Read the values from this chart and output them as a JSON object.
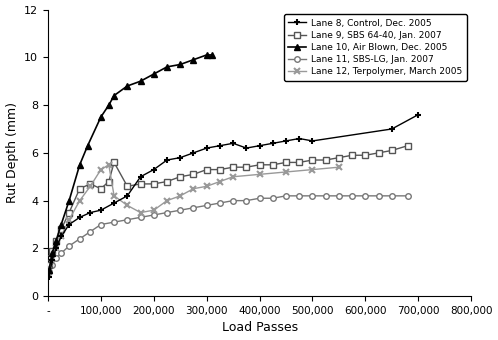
{
  "xlabel": "Load Passes",
  "ylabel": "Rut Depth (mm)",
  "xlim": [
    0,
    800000
  ],
  "ylim": [
    0,
    12
  ],
  "yticks": [
    0,
    2,
    4,
    6,
    8,
    10,
    12
  ],
  "xticks": [
    0,
    100000,
    200000,
    300000,
    400000,
    500000,
    600000,
    700000,
    800000
  ],
  "xtick_labels": [
    "-",
    "100,000",
    "200,000",
    "300,000",
    "400,000",
    "500,000",
    "600,000",
    "700,000",
    "800,000"
  ],
  "lane8": {
    "label": "Lane 8, Control, Dec. 2005",
    "color": "#000000",
    "marker": "+",
    "markersize": 5,
    "markeredgewidth": 1.5,
    "linewidth": 1.0,
    "linestyle": "-",
    "x": [
      2000,
      8000,
      15000,
      25000,
      40000,
      60000,
      80000,
      100000,
      125000,
      150000,
      175000,
      200000,
      225000,
      250000,
      275000,
      300000,
      325000,
      350000,
      375000,
      400000,
      425000,
      450000,
      475000,
      500000,
      650000,
      700000
    ],
    "y": [
      0.8,
      1.5,
      2.0,
      2.5,
      3.0,
      3.3,
      3.5,
      3.6,
      3.9,
      4.2,
      5.0,
      5.3,
      5.7,
      5.8,
      6.0,
      6.2,
      6.3,
      6.4,
      6.2,
      6.3,
      6.4,
      6.5,
      6.6,
      6.5,
      7.0,
      7.6
    ]
  },
  "lane9": {
    "label": "Lane 9, SBS 64-40, Jan. 2007",
    "color": "#555555",
    "marker": "s",
    "markersize": 4,
    "linewidth": 1.0,
    "linestyle": "-",
    "markerfacecolor": "white",
    "x": [
      2000,
      8000,
      15000,
      25000,
      40000,
      60000,
      80000,
      100000,
      115000,
      125000,
      150000,
      175000,
      200000,
      225000,
      250000,
      275000,
      300000,
      325000,
      350000,
      375000,
      400000,
      425000,
      450000,
      475000,
      500000,
      525000,
      550000,
      575000,
      600000,
      625000,
      650000,
      680000
    ],
    "y": [
      1.3,
      1.9,
      2.3,
      2.8,
      3.5,
      4.5,
      4.7,
      4.5,
      4.8,
      5.6,
      4.6,
      4.7,
      4.7,
      4.8,
      5.0,
      5.1,
      5.3,
      5.3,
      5.4,
      5.4,
      5.5,
      5.5,
      5.6,
      5.6,
      5.7,
      5.7,
      5.8,
      5.9,
      5.9,
      6.0,
      6.1,
      6.3
    ]
  },
  "lane10": {
    "label": "Lane 10, Air Blown, Dec. 2005",
    "color": "#000000",
    "marker": "^",
    "markersize": 5,
    "linewidth": 1.2,
    "linestyle": "-",
    "x": [
      2000,
      8000,
      15000,
      25000,
      40000,
      60000,
      75000,
      100000,
      115000,
      125000,
      150000,
      175000,
      200000,
      225000,
      250000,
      275000,
      300000,
      310000
    ],
    "y": [
      1.1,
      1.8,
      2.3,
      3.0,
      4.0,
      5.5,
      6.3,
      7.5,
      8.0,
      8.4,
      8.8,
      9.0,
      9.3,
      9.6,
      9.7,
      9.9,
      10.1,
      10.1
    ]
  },
  "lane11": {
    "label": "Lane 11, SBS-LG, Jan. 2007",
    "color": "#777777",
    "marker": "o",
    "markersize": 4,
    "linewidth": 1.0,
    "linestyle": "-",
    "markerfacecolor": "white",
    "x": [
      2000,
      8000,
      15000,
      25000,
      40000,
      60000,
      80000,
      100000,
      125000,
      150000,
      175000,
      200000,
      225000,
      250000,
      275000,
      300000,
      325000,
      350000,
      375000,
      400000,
      425000,
      450000,
      475000,
      500000,
      525000,
      550000,
      575000,
      600000,
      625000,
      650000,
      680000
    ],
    "y": [
      1.0,
      1.3,
      1.6,
      1.8,
      2.1,
      2.4,
      2.7,
      3.0,
      3.1,
      3.2,
      3.3,
      3.4,
      3.5,
      3.6,
      3.7,
      3.8,
      3.9,
      4.0,
      4.0,
      4.1,
      4.1,
      4.2,
      4.2,
      4.2,
      4.2,
      4.2,
      4.2,
      4.2,
      4.2,
      4.2,
      4.2
    ]
  },
  "lane12": {
    "label": "Lane 12, Terpolymer, March 2005",
    "color": "#999999",
    "marker": "x",
    "markersize": 5,
    "markeredgewidth": 1.5,
    "linewidth": 1.0,
    "linestyle": "-",
    "x": [
      2000,
      8000,
      15000,
      25000,
      40000,
      60000,
      80000,
      100000,
      115000,
      125000,
      150000,
      175000,
      200000,
      225000,
      250000,
      275000,
      300000,
      325000,
      350000,
      400000,
      450000,
      500000,
      550000
    ],
    "y": [
      1.2,
      1.6,
      2.0,
      2.5,
      3.2,
      4.0,
      4.6,
      5.3,
      5.5,
      4.2,
      3.8,
      3.5,
      3.6,
      4.0,
      4.2,
      4.5,
      4.6,
      4.8,
      5.0,
      5.1,
      5.2,
      5.3,
      5.4
    ]
  }
}
